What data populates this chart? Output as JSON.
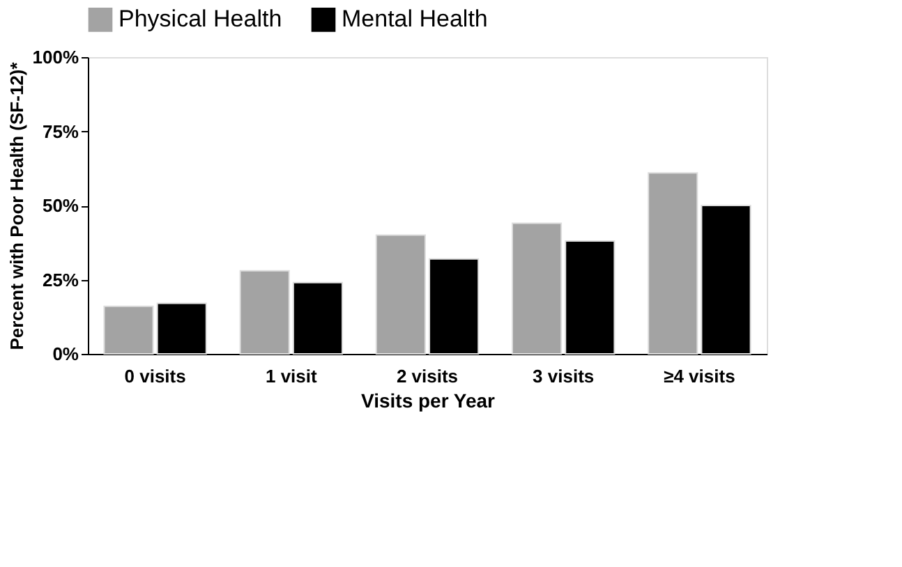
{
  "chart_data": {
    "type": "bar",
    "xlabel": "Visits per Year",
    "ylabel": "Percent with Poor Health (SF-12)*",
    "categories": [
      "0 visits",
      "1 visit",
      "2 visits",
      "3 visits",
      "≥4 visits"
    ],
    "series": [
      {
        "name": "Physical Health",
        "color": "#a3a3a3",
        "values": [
          16,
          28,
          40,
          44,
          61
        ]
      },
      {
        "name": "Mental Health",
        "color": "#000000",
        "values": [
          17,
          24,
          32,
          38,
          50
        ]
      }
    ],
    "ylim": [
      0,
      100
    ],
    "yticks": [
      {
        "value": 0,
        "label": "0%"
      },
      {
        "value": 25,
        "label": "25%"
      },
      {
        "value": 50,
        "label": "50%"
      },
      {
        "value": 75,
        "label": "75%"
      },
      {
        "value": 100,
        "label": "100%"
      }
    ],
    "grid": false,
    "legend": "top"
  }
}
